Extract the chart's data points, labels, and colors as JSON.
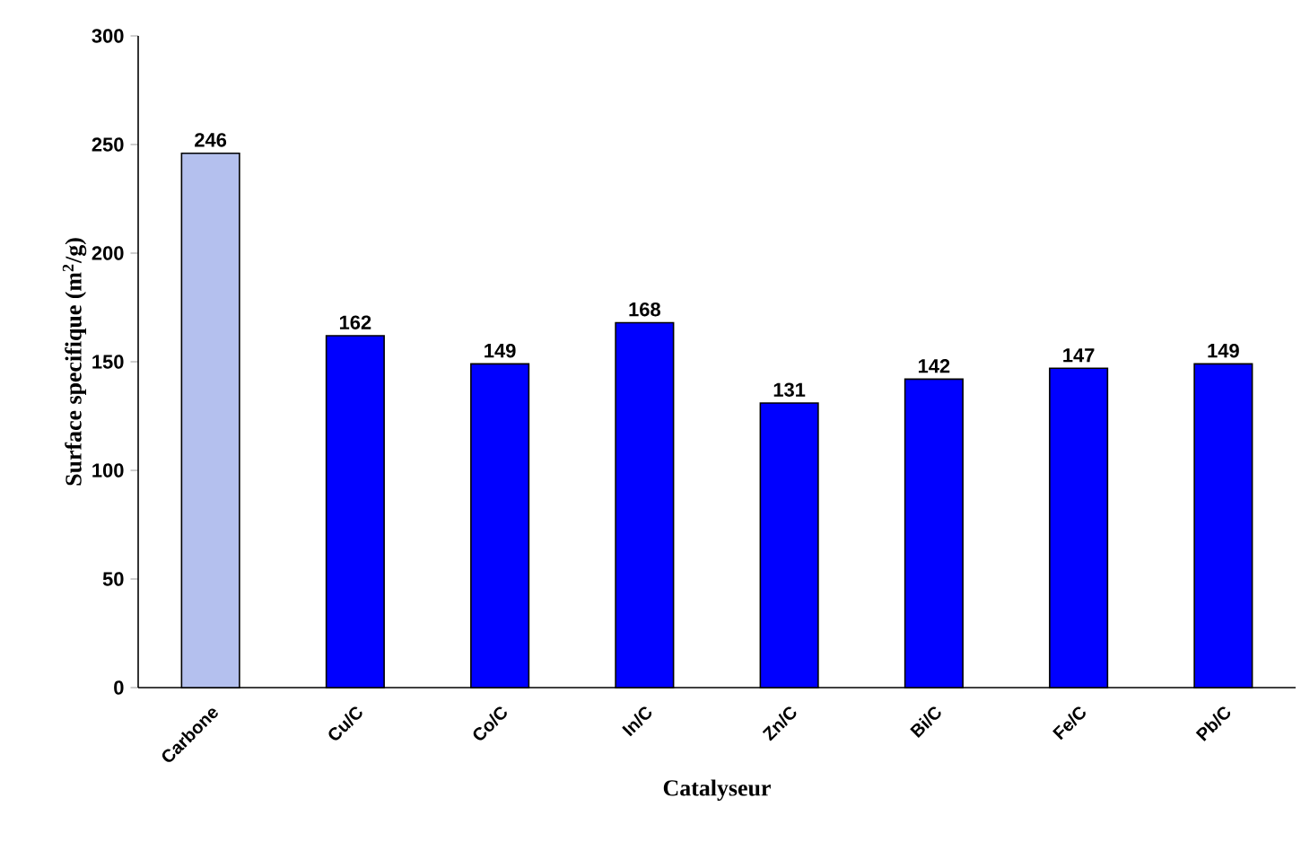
{
  "chart_data": {
    "type": "bar",
    "xlabel": "Catalyseur",
    "ylabel": "Surface specifique (m$^{2}$/g)",
    "categories": [
      "Carbone",
      "Cu/C",
      "Co/C",
      "In/C",
      "Zn/C",
      "Bi/C",
      "Fe/C",
      "Pb/C"
    ],
    "values": [
      246,
      162,
      149,
      168,
      131,
      142,
      147,
      149
    ],
    "colors": [
      "#b4c0ee",
      "#0000ff",
      "#0000ff",
      "#0000ff",
      "#0000ff",
      "#0000ff",
      "#0000ff",
      "#0000ff"
    ],
    "ylim": [
      0,
      300
    ],
    "yticks": [
      0,
      50,
      100,
      150,
      200,
      250,
      300
    ],
    "data_labels": true
  }
}
